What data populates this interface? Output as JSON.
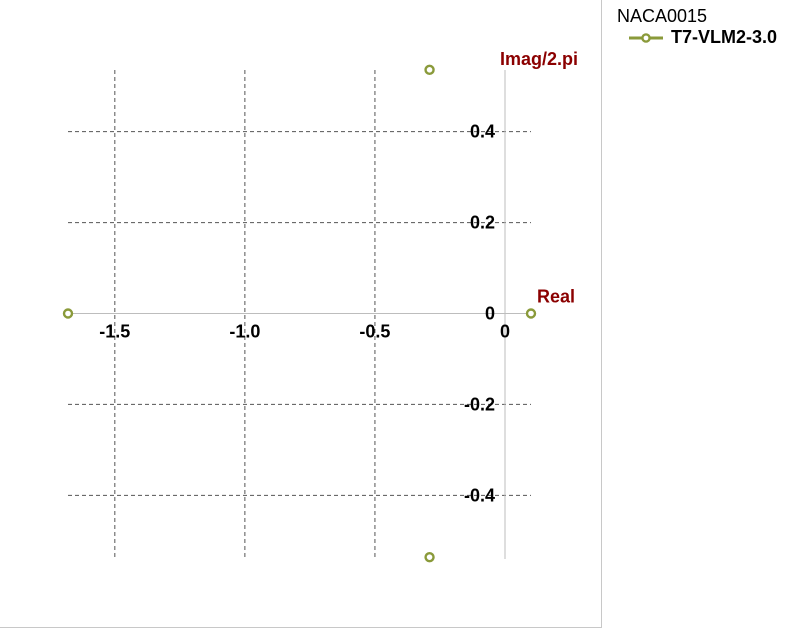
{
  "legend": {
    "title": "NACA0015",
    "placement": "top-right"
  },
  "chart_data": {
    "type": "scatter",
    "xlabel": "Real",
    "ylabel": "Imag/2.pi",
    "xlim": [
      -1.68,
      0.1
    ],
    "ylim": [
      -0.54,
      0.54
    ],
    "x_ticks": [
      {
        "value": -1.5,
        "label": "-1.5"
      },
      {
        "value": -1.0,
        "label": "-1.0"
      },
      {
        "value": -0.5,
        "label": "-0.5"
      },
      {
        "value": 0,
        "label": "0"
      }
    ],
    "y_ticks": [
      {
        "value": 0.4,
        "label": "0.4"
      },
      {
        "value": 0.2,
        "label": "0.2"
      },
      {
        "value": 0,
        "label": "0"
      },
      {
        "value": -0.2,
        "label": "-0.2"
      },
      {
        "value": -0.4,
        "label": "-0.4"
      }
    ],
    "grid": true,
    "axis_color": "#8b0000",
    "series": [
      {
        "name": "T7-VLM2-3.0",
        "color": "#8a9a3a",
        "marker": "open-circle",
        "points": [
          {
            "x": -0.29,
            "y": 0.536
          },
          {
            "x": -0.29,
            "y": -0.536
          },
          {
            "x": -1.68,
            "y": 0
          },
          {
            "x": 0.1,
            "y": 0
          }
        ]
      }
    ]
  }
}
